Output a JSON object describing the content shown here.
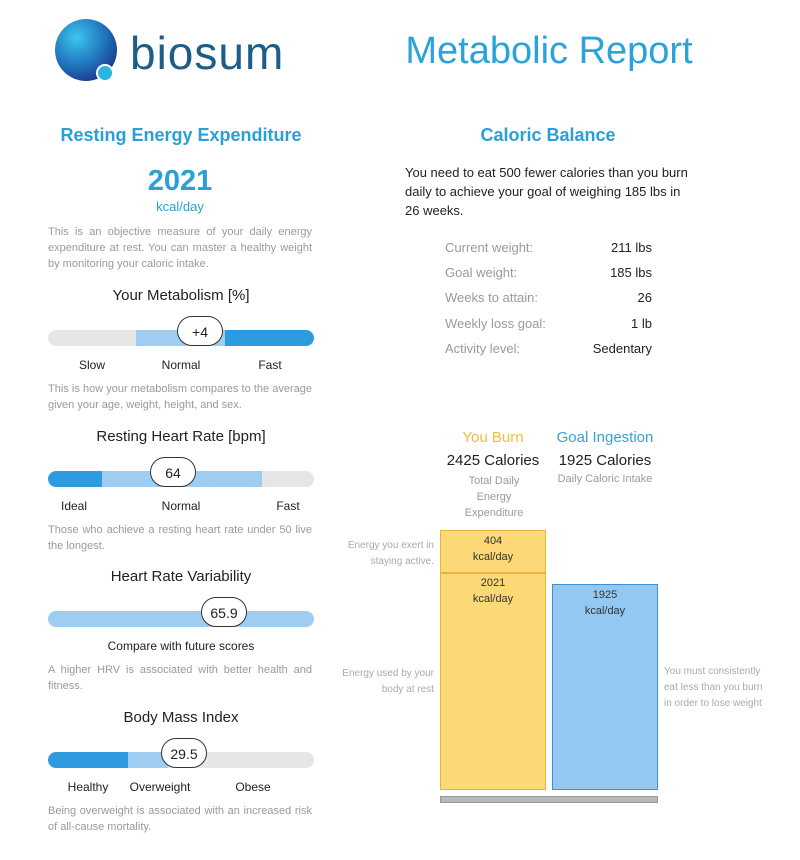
{
  "header": {
    "logo": "biosum",
    "title": "Metabolic Report"
  },
  "left": {
    "title": "Resting Energy Expenditure",
    "ree_value": "2021",
    "ree_unit": "kcal/day",
    "description": "This is an objective measure of your daily energy expenditure at rest. You can master a healthy weight by monitoring your caloric intake.",
    "gauges": [
      {
        "title": "Your Metabolism [%]",
        "value": "+4",
        "labels": [
          "Slow",
          "Normal",
          "Fast"
        ],
        "note": "This is how your metabolism compares to the average given your age, weight, height, and sex."
      },
      {
        "title": "Resting Heart Rate [bpm]",
        "value": "64",
        "labels": [
          "Ideal",
          "Normal",
          "Fast"
        ],
        "note": "Those who achieve a resting heart rate under 50 live the longest."
      },
      {
        "title": "Heart Rate Variability",
        "value": "65.9",
        "labels": [
          "Compare with future scores"
        ],
        "note": "A higher HRV is associated with better health and fitness."
      },
      {
        "title": "Body Mass Index",
        "value": "29.5",
        "labels": [
          "Healthy",
          "Overweight",
          "Obese"
        ],
        "note": "Being overweight is associated with an increased risk of all-cause mortality."
      }
    ]
  },
  "right": {
    "title": "Caloric Balance",
    "intro": "You need to eat 500 fewer calories than you burn daily to achieve your goal of weighing 185 lbs in 26 weeks.",
    "stats": [
      [
        "Current weight:",
        "211 lbs"
      ],
      [
        "Goal weight:",
        "185 lbs"
      ],
      [
        "Weeks to attain:",
        "26"
      ],
      [
        "Weekly loss goal:",
        "1 lb"
      ],
      [
        "Activity level:",
        "Sedentary"
      ]
    ],
    "burn": {
      "title": "You Burn",
      "value": "2425 Calories",
      "desc": "Total Daily Energy Expenditure"
    },
    "ingestion": {
      "title": "Goal Ingestion",
      "value": "1925 Calories",
      "desc": "Daily Caloric Intake"
    },
    "chart": {
      "active": {
        "value": 404,
        "unit": "kcal/day",
        "note": "Energy you exert in staying active."
      },
      "rest": {
        "value": 2021,
        "unit": "kcal/day",
        "note": "Energy used by your body at rest"
      },
      "intake": {
        "value": 1925,
        "unit": "kcal/day",
        "note": "You must consistently eat less than you burn in order to lose weight"
      }
    }
  }
}
